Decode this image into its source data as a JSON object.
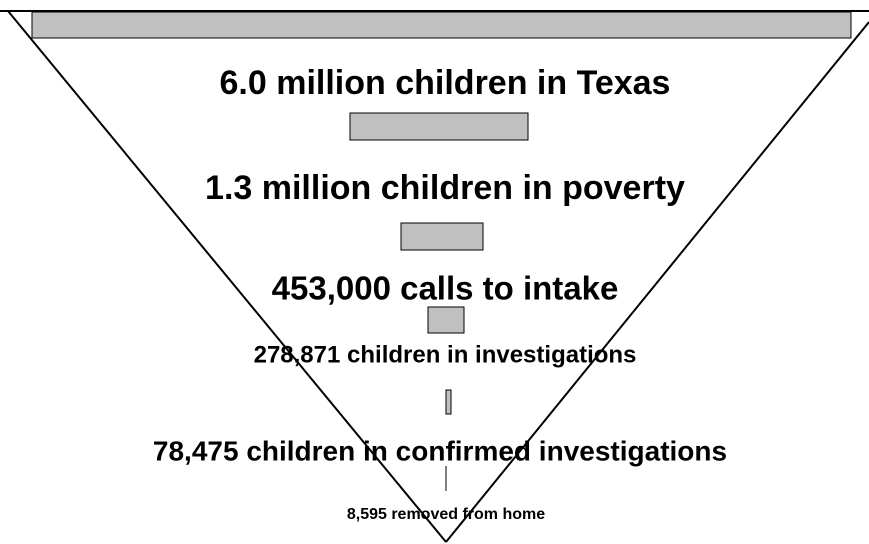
{
  "stages": [
    {
      "label": "6.0 million children in Texas"
    },
    {
      "label": "1.3 million children in poverty"
    },
    {
      "label": "453,000 calls to intake"
    },
    {
      "label": "278,871 children in investigations"
    },
    {
      "label": "78,475 children in confirmed investigations"
    },
    {
      "label": "8,595 removed from home"
    }
  ]
}
